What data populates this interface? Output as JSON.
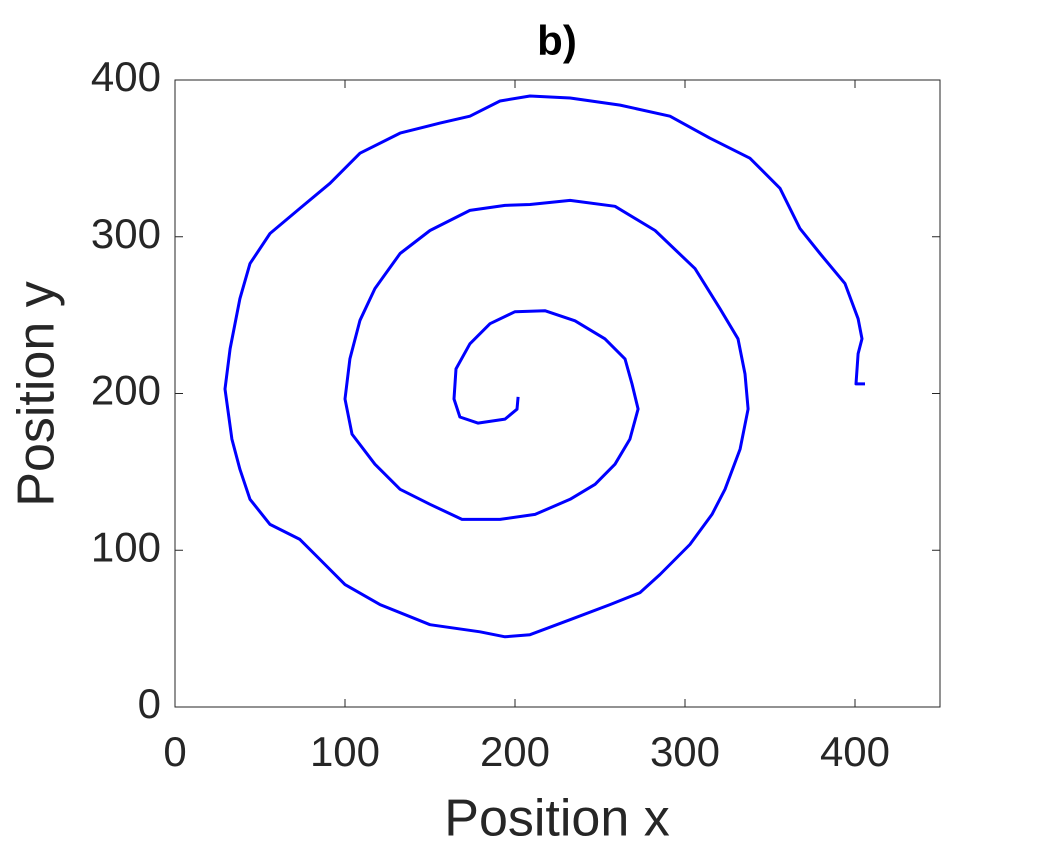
{
  "chart_data": {
    "type": "line",
    "title": "b)",
    "x_label": "Position x",
    "y_label": "Position y",
    "xlim": [
      0,
      450
    ],
    "ylim": [
      0,
      400
    ],
    "xticks": [
      0,
      100,
      200,
      300,
      400
    ],
    "yticks": [
      0,
      100,
      200,
      300,
      400
    ],
    "grid": false,
    "series": [
      {
        "color": "#0000ff",
        "x": [
          201.8,
          201.2,
          194.1,
          178.2,
          167.6,
          164.1,
          165.3,
          173.5,
          185.3,
          200,
          217.6,
          235.3,
          252.9,
          264.7,
          268.8,
          272.4,
          267.6,
          258.8,
          247.1,
          232.4,
          211.8,
          191.2,
          168.8,
          150,
          132.4,
          117.6,
          104.1,
          100,
          102.9,
          108.8,
          117.6,
          132.4,
          150,
          173.5,
          194.1,
          208.8,
          232.4,
          258.8,
          282.4,
          305.9,
          320.6,
          331.2,
          335.3,
          337.1,
          332.4,
          323.5,
          315.9,
          302.9,
          285.3,
          273.5,
          255.9,
          232.4,
          208.8,
          194.1,
          179.4,
          150,
          120.6,
          100,
          85.3,
          73.5,
          55.9,
          44.1,
          38.2,
          33.5,
          29.4,
          32.4,
          38.2,
          44.1,
          55.9,
          73.5,
          91.2,
          108.8,
          132.4,
          155.9,
          173.5,
          191.2,
          208.8,
          232.4,
          261.8,
          291.2,
          314.7,
          338.2,
          355.9,
          367.6,
          379.4,
          394.1,
          401.8,
          404.1,
          401.8,
          400.6,
          405.9
        ],
        "values": [
          197.8,
          190,
          183.7,
          181.1,
          185,
          196.5,
          215.7,
          231.7,
          244.5,
          252.2,
          252.8,
          246.4,
          234.9,
          222.1,
          206.1,
          190.1,
          170.9,
          154.9,
          142.1,
          132.5,
          122.9,
          119.7,
          119.7,
          129.3,
          138.9,
          154.9,
          174.1,
          196.5,
          222.1,
          246.7,
          266.9,
          289.3,
          304,
          316.8,
          320,
          320.6,
          323.2,
          319.4,
          304,
          279.7,
          254.1,
          234.9,
          212.5,
          190.1,
          164.5,
          138.9,
          122.9,
          103.7,
          84.5,
          73,
          65.3,
          55.7,
          46.1,
          44.8,
          48,
          52.5,
          65.3,
          78.1,
          94.1,
          106.9,
          116.5,
          132.5,
          151.7,
          170.9,
          202.9,
          228.5,
          260.5,
          282.9,
          302.1,
          318.1,
          334.1,
          353.3,
          366.1,
          372.5,
          376.9,
          386.6,
          389.8,
          388.5,
          384,
          376.9,
          362.9,
          350.1,
          330.9,
          305.3,
          289.3,
          270.1,
          247.7,
          234.9,
          225.3,
          206.1,
          206.1
        ]
      }
    ]
  }
}
